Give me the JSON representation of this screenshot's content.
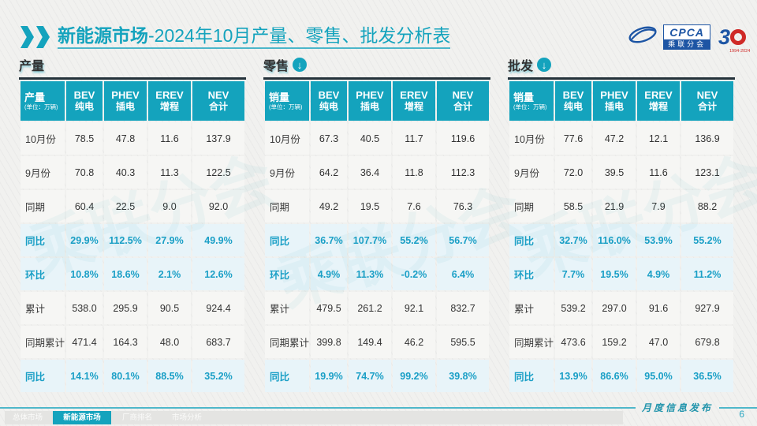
{
  "page": {
    "title": {
      "bold": "新能源市场",
      "rest": "-2024年10月产量、零售、批发分析表"
    },
    "logos": {
      "cpca_acronym": "CPCA",
      "cpca_name": "乘联分会",
      "cpca_emblem_text": "乘联会",
      "anniversary_number_left": "3",
      "anniversary_years": "1994-2024"
    },
    "watermark_text": "乘联分会",
    "footer": {
      "tabs": [
        {
          "label": "总体市场",
          "active": false
        },
        {
          "label": "新能源市场",
          "active": true
        },
        {
          "label": "厂商排名",
          "active": false
        },
        {
          "label": "市场分析",
          "active": false
        }
      ],
      "publish_label": "月度信息发布",
      "page_number": "6"
    },
    "colors": {
      "accent": "#14a3bd",
      "highlight_bg": "#e8f4f9",
      "highlight_text": "#1a9fc6",
      "header_dark_border": "#24323a"
    }
  },
  "chart_data": [
    {
      "type": "table",
      "key": "production",
      "section_title": "产量",
      "has_arrow_icon": false,
      "corner": {
        "title": "产量",
        "unit": "(单位：万辆)"
      },
      "columns": [
        {
          "en": "BEV",
          "cn": "纯电"
        },
        {
          "en": "PHEV",
          "cn": "插电"
        },
        {
          "en": "EREV",
          "cn": "增程"
        },
        {
          "en": "NEV",
          "cn": "合计"
        }
      ],
      "rows": [
        {
          "label": "10月份",
          "values": [
            "78.5",
            "47.8",
            "11.6",
            "137.9"
          ],
          "highlight": false
        },
        {
          "label": "9月份",
          "values": [
            "70.8",
            "40.3",
            "11.3",
            "122.5"
          ],
          "highlight": false
        },
        {
          "label": "同期",
          "values": [
            "60.4",
            "22.5",
            "9.0",
            "92.0"
          ],
          "highlight": false
        },
        {
          "label": "同比",
          "values": [
            "29.9%",
            "112.5%",
            "27.9%",
            "49.9%"
          ],
          "highlight": true
        },
        {
          "label": "环比",
          "values": [
            "10.8%",
            "18.6%",
            "2.1%",
            "12.6%"
          ],
          "highlight": true
        },
        {
          "label": "累计",
          "values": [
            "538.0",
            "295.9",
            "90.5",
            "924.4"
          ],
          "highlight": false
        },
        {
          "label": "同期累计",
          "values": [
            "471.4",
            "164.3",
            "48.0",
            "683.7"
          ],
          "highlight": false
        },
        {
          "label": "同比",
          "values": [
            "14.1%",
            "80.1%",
            "88.5%",
            "35.2%"
          ],
          "highlight": true
        }
      ]
    },
    {
      "type": "table",
      "key": "retail",
      "section_title": "零售",
      "has_arrow_icon": true,
      "corner": {
        "title": "销量",
        "unit": "(单位：万辆)"
      },
      "columns": [
        {
          "en": "BEV",
          "cn": "纯电"
        },
        {
          "en": "PHEV",
          "cn": "插电"
        },
        {
          "en": "EREV",
          "cn": "增程"
        },
        {
          "en": "NEV",
          "cn": "合计"
        }
      ],
      "rows": [
        {
          "label": "10月份",
          "values": [
            "67.3",
            "40.5",
            "11.7",
            "119.6"
          ],
          "highlight": false
        },
        {
          "label": "9月份",
          "values": [
            "64.2",
            "36.4",
            "11.8",
            "112.3"
          ],
          "highlight": false
        },
        {
          "label": "同期",
          "values": [
            "49.2",
            "19.5",
            "7.6",
            "76.3"
          ],
          "highlight": false
        },
        {
          "label": "同比",
          "values": [
            "36.7%",
            "107.7%",
            "55.2%",
            "56.7%"
          ],
          "highlight": true
        },
        {
          "label": "环比",
          "values": [
            "4.9%",
            "11.3%",
            "-0.2%",
            "6.4%"
          ],
          "highlight": true
        },
        {
          "label": "累计",
          "values": [
            "479.5",
            "261.2",
            "92.1",
            "832.7"
          ],
          "highlight": false
        },
        {
          "label": "同期累计",
          "values": [
            "399.8",
            "149.4",
            "46.2",
            "595.5"
          ],
          "highlight": false
        },
        {
          "label": "同比",
          "values": [
            "19.9%",
            "74.7%",
            "99.2%",
            "39.8%"
          ],
          "highlight": true
        }
      ]
    },
    {
      "type": "table",
      "key": "wholesale",
      "section_title": "批发",
      "has_arrow_icon": true,
      "corner": {
        "title": "销量",
        "unit": "(单位：万辆)"
      },
      "columns": [
        {
          "en": "BEV",
          "cn": "纯电"
        },
        {
          "en": "PHEV",
          "cn": "插电"
        },
        {
          "en": "EREV",
          "cn": "增程"
        },
        {
          "en": "NEV",
          "cn": "合计"
        }
      ],
      "rows": [
        {
          "label": "10月份",
          "values": [
            "77.6",
            "47.2",
            "12.1",
            "136.9"
          ],
          "highlight": false
        },
        {
          "label": "9月份",
          "values": [
            "72.0",
            "39.5",
            "11.6",
            "123.1"
          ],
          "highlight": false
        },
        {
          "label": "同期",
          "values": [
            "58.5",
            "21.9",
            "7.9",
            "88.2"
          ],
          "highlight": false
        },
        {
          "label": "同比",
          "values": [
            "32.7%",
            "116.0%",
            "53.9%",
            "55.2%"
          ],
          "highlight": true
        },
        {
          "label": "环比",
          "values": [
            "7.7%",
            "19.5%",
            "4.9%",
            "11.2%"
          ],
          "highlight": true
        },
        {
          "label": "累计",
          "values": [
            "539.2",
            "297.0",
            "91.6",
            "927.9"
          ],
          "highlight": false
        },
        {
          "label": "同期累计",
          "values": [
            "473.6",
            "159.2",
            "47.0",
            "679.8"
          ],
          "highlight": false
        },
        {
          "label": "同比",
          "values": [
            "13.9%",
            "86.6%",
            "95.0%",
            "36.5%"
          ],
          "highlight": true
        }
      ]
    }
  ]
}
